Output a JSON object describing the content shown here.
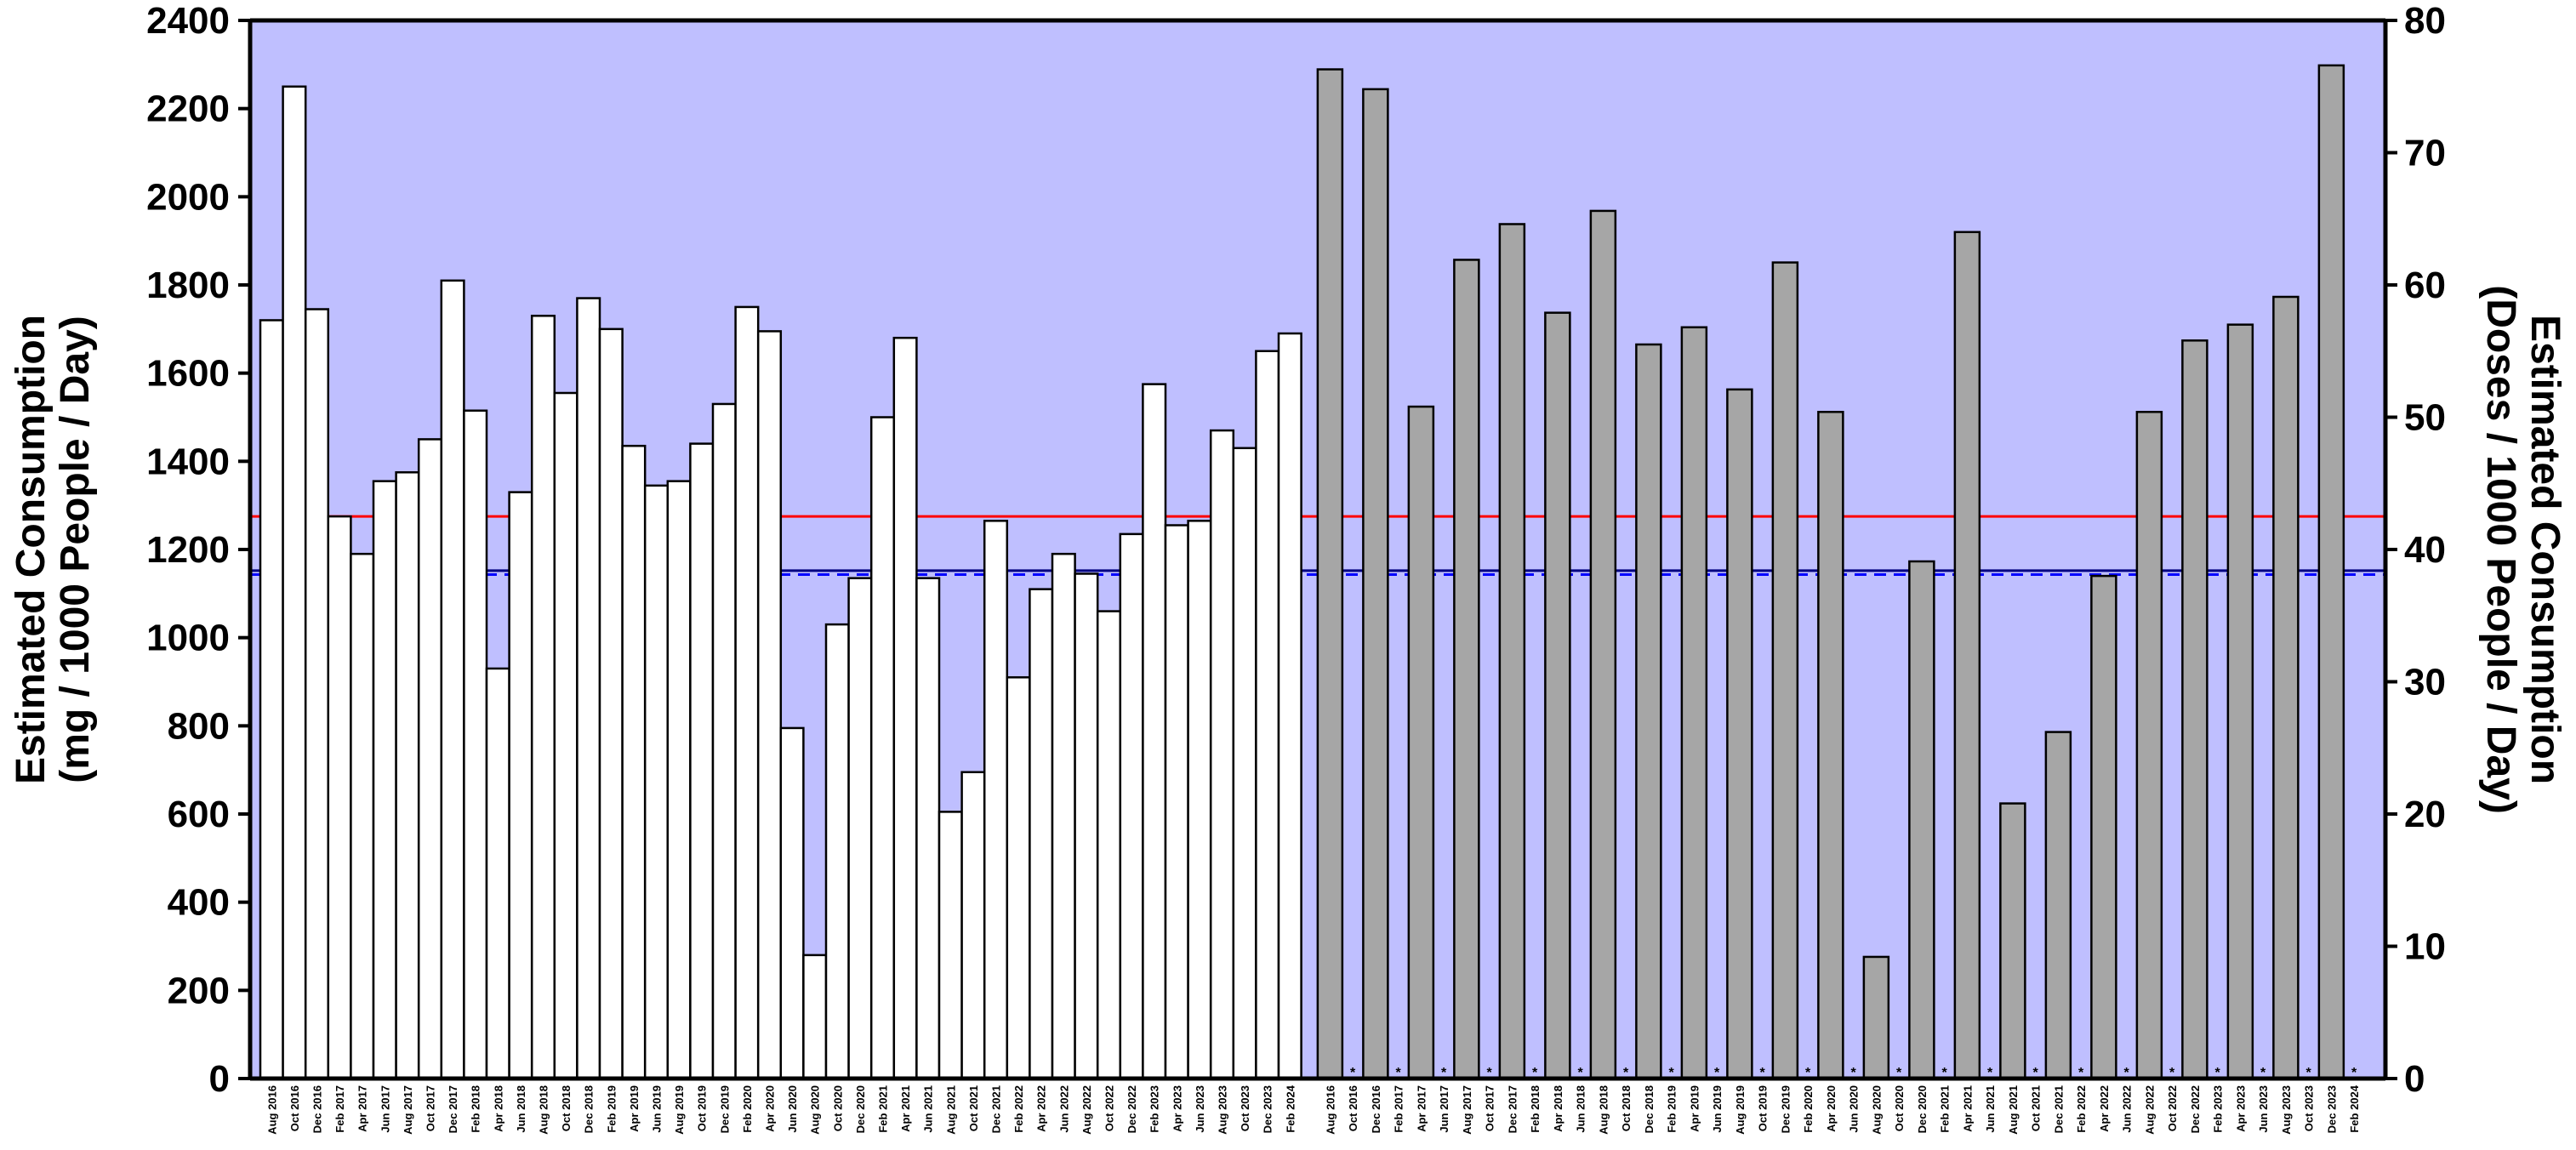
{
  "chart_data": {
    "type": "bar",
    "title": "",
    "ylabel_left": [
      "Estimated Consumption",
      "(mg / 1000 People / Day)"
    ],
    "ylabel_right": [
      "Estimated Consumption",
      "(Doses / 1000 People / Day)"
    ],
    "ylim_left": [
      0,
      2400
    ],
    "ylim_right": [
      0,
      80
    ],
    "yticks_left": [
      0,
      200,
      400,
      600,
      800,
      1000,
      1200,
      1400,
      1600,
      1800,
      2000,
      2200,
      2400
    ],
    "yticks_right": [
      0,
      10,
      20,
      30,
      40,
      50,
      60,
      70,
      80
    ],
    "colors": {
      "background": "#bfbfff",
      "bar_left": "#ffffff",
      "bar_right": "#a6a6a6",
      "mean_line": "#ff0000",
      "reference_line": "#000080",
      "dashed_line": "#0000ff"
    },
    "reference_lines": {
      "red_solid_left_units": 1275,
      "navy_solid_left_units": 1152,
      "blue_dashed_left_units": 1143
    },
    "series": [
      {
        "axis": "left",
        "categories": [
          "Aug 2016",
          "Oct 2016",
          "Dec 2016",
          "Feb 2017",
          "Apr 2017",
          "Jun 2017",
          "Aug 2017",
          "Oct 2017",
          "Dec 2017",
          "Feb 2018",
          "Apr 2018",
          "Jun 2018",
          "Aug 2018",
          "Oct 2018",
          "Dec 2018",
          "Feb 2019",
          "Apr 2019",
          "Jun 2019",
          "Aug 2019",
          "Oct 2019",
          "Dec 2019",
          "Feb 2020",
          "Apr 2020",
          "Jun 2020",
          "Aug 2020",
          "Oct 2020",
          "Dec 2020",
          "Feb 2021",
          "Apr 2021",
          "Jun 2021",
          "Aug 2021",
          "Oct 2021",
          "Dec 2021",
          "Feb 2022",
          "Apr 2022",
          "Jun 2022",
          "Aug 2022",
          "Oct 2022",
          "Dec 2022",
          "Feb 2023",
          "Apr 2023",
          "Jun 2023",
          "Aug 2023",
          "Oct 2023",
          "Dec 2023",
          "Feb 2024"
        ],
        "values": [
          1720,
          2250,
          1745,
          1275,
          1190,
          1355,
          1375,
          1450,
          1810,
          1515,
          930,
          1330,
          1730,
          1555,
          1770,
          1700,
          1435,
          1345,
          1355,
          1440,
          1530,
          1750,
          1695,
          795,
          280,
          1030,
          1135,
          1500,
          1680,
          1135,
          605,
          695,
          1265,
          910,
          1110,
          1190,
          1145,
          1060,
          1235,
          1575,
          1255,
          1265,
          1470,
          1430,
          1650,
          1690
        ]
      },
      {
        "axis": "right",
        "categories": [
          "Aug 2016",
          "Oct 2016",
          "Dec 2016",
          "Feb 2017",
          "Apr 2017",
          "Jun 2017",
          "Aug 2017",
          "Oct 2017",
          "Dec 2017",
          "Feb 2018",
          "Apr 2018",
          "Jun 2018",
          "Aug 2018",
          "Oct 2018",
          "Dec 2018",
          "Feb 2019",
          "Apr 2019",
          "Jun 2019",
          "Aug 2019",
          "Oct 2019",
          "Dec 2019",
          "Feb 2020",
          "Apr 2020",
          "Jun 2020",
          "Aug 2020",
          "Oct 2020",
          "Dec 2020",
          "Feb 2021",
          "Apr 2021",
          "Jun 2021",
          "Aug 2021",
          "Oct 2021",
          "Dec 2021",
          "Feb 2022",
          "Apr 2022",
          "Jun 2022",
          "Aug 2022",
          "Oct 2022",
          "Dec 2022",
          "Feb 2023",
          "Apr 2023",
          "Jun 2023",
          "Aug 2023",
          "Oct 2023",
          "Dec 2023",
          "Feb 2024"
        ],
        "values": [
          76.3,
          null,
          74.8,
          null,
          50.8,
          null,
          61.9,
          null,
          64.6,
          null,
          57.9,
          null,
          65.6,
          null,
          55.5,
          null,
          56.8,
          null,
          52.1,
          null,
          61.7,
          null,
          50.4,
          null,
          9.2,
          null,
          39.1,
          null,
          64.0,
          null,
          20.8,
          null,
          26.2,
          null,
          38.0,
          null,
          50.4,
          null,
          55.8,
          null,
          57.0,
          null,
          59.1,
          null,
          76.6,
          null
        ],
        "markers": [
          false,
          true,
          false,
          true,
          false,
          true,
          false,
          true,
          false,
          true,
          false,
          true,
          false,
          true,
          false,
          true,
          false,
          true,
          false,
          true,
          false,
          true,
          false,
          true,
          false,
          true,
          false,
          true,
          false,
          true,
          false,
          true,
          false,
          true,
          false,
          true,
          false,
          true,
          false,
          true,
          false,
          true,
          false,
          true,
          false,
          true
        ],
        "marker_symbol": "*"
      }
    ]
  }
}
